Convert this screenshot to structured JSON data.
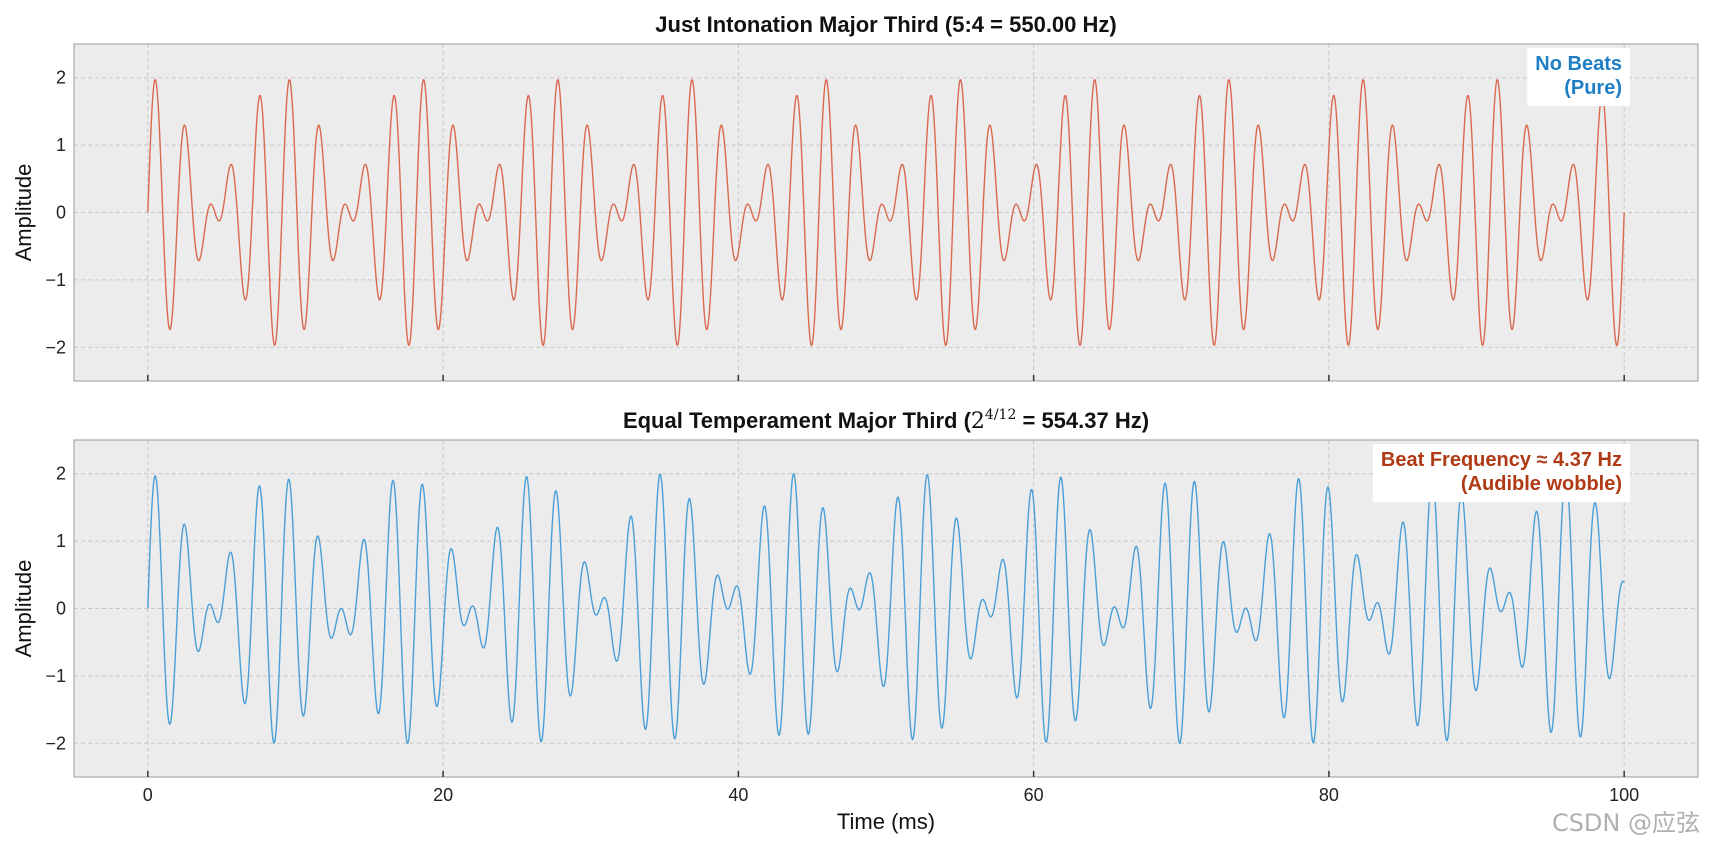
{
  "chart_data": [
    {
      "type": "line",
      "title": "Just Intonation Major Third (5:4 = 550.00 Hz)",
      "title_prefix": "Just Intonation Major Third (5:4 = 550.00 Hz)",
      "title_math": "",
      "title_suffix": "",
      "xlabel": "",
      "ylabel": "Amplitude",
      "xlim": [
        -5,
        105
      ],
      "ylim": [
        -2.5,
        2.5
      ],
      "xticks": [
        0,
        20,
        40,
        60,
        80,
        100
      ],
      "xtick_labels": [
        "",
        "",
        "",
        "",
        "",
        ""
      ],
      "yticks": [
        -2,
        -1,
        0,
        1,
        2
      ],
      "ytick_labels": [
        "−2",
        "−1",
        "0",
        "1",
        "2"
      ],
      "grid": true,
      "series": [
        {
          "color": "#d9694f",
          "x_range_ms": [
            0,
            100
          ],
          "sample_step_ms": 0.02,
          "frequencies_hz": [
            440.0,
            550.0
          ],
          "amplitudes": [
            1,
            1
          ]
        }
      ],
      "annotation": {
        "lines": [
          "No Beats",
          "(Pure)"
        ],
        "color": "#1f7fc4",
        "placement": "top-right"
      }
    },
    {
      "type": "line",
      "title": "Equal Temperament Major Third (2^{4/12} = 554.37 Hz)",
      "title_prefix": "Equal Temperament Major Third (",
      "title_math": "2",
      "title_math_sup": "4/12",
      "title_suffix": " = 554.37 Hz)",
      "xlabel": "Time (ms)",
      "ylabel": "Amplitude",
      "xlim": [
        -5,
        105
      ],
      "ylim": [
        -2.5,
        2.5
      ],
      "xticks": [
        0,
        20,
        40,
        60,
        80,
        100
      ],
      "xtick_labels": [
        "0",
        "20",
        "40",
        "60",
        "80",
        "100"
      ],
      "yticks": [
        -2,
        -1,
        0,
        1,
        2
      ],
      "ytick_labels": [
        "−2",
        "−1",
        "0",
        "1",
        "2"
      ],
      "grid": true,
      "series": [
        {
          "color": "#4a9fd8",
          "x_range_ms": [
            0,
            100
          ],
          "sample_step_ms": 0.02,
          "frequencies_hz": [
            440.0,
            554.37
          ],
          "amplitudes": [
            1,
            1
          ]
        }
      ],
      "annotation": {
        "lines": [
          "Beat Frequency ≈ 4.37 Hz",
          "(Audible wobble)"
        ],
        "color": "#b03a14",
        "placement": "top-right"
      }
    }
  ],
  "watermark": "CSDN @应弦"
}
